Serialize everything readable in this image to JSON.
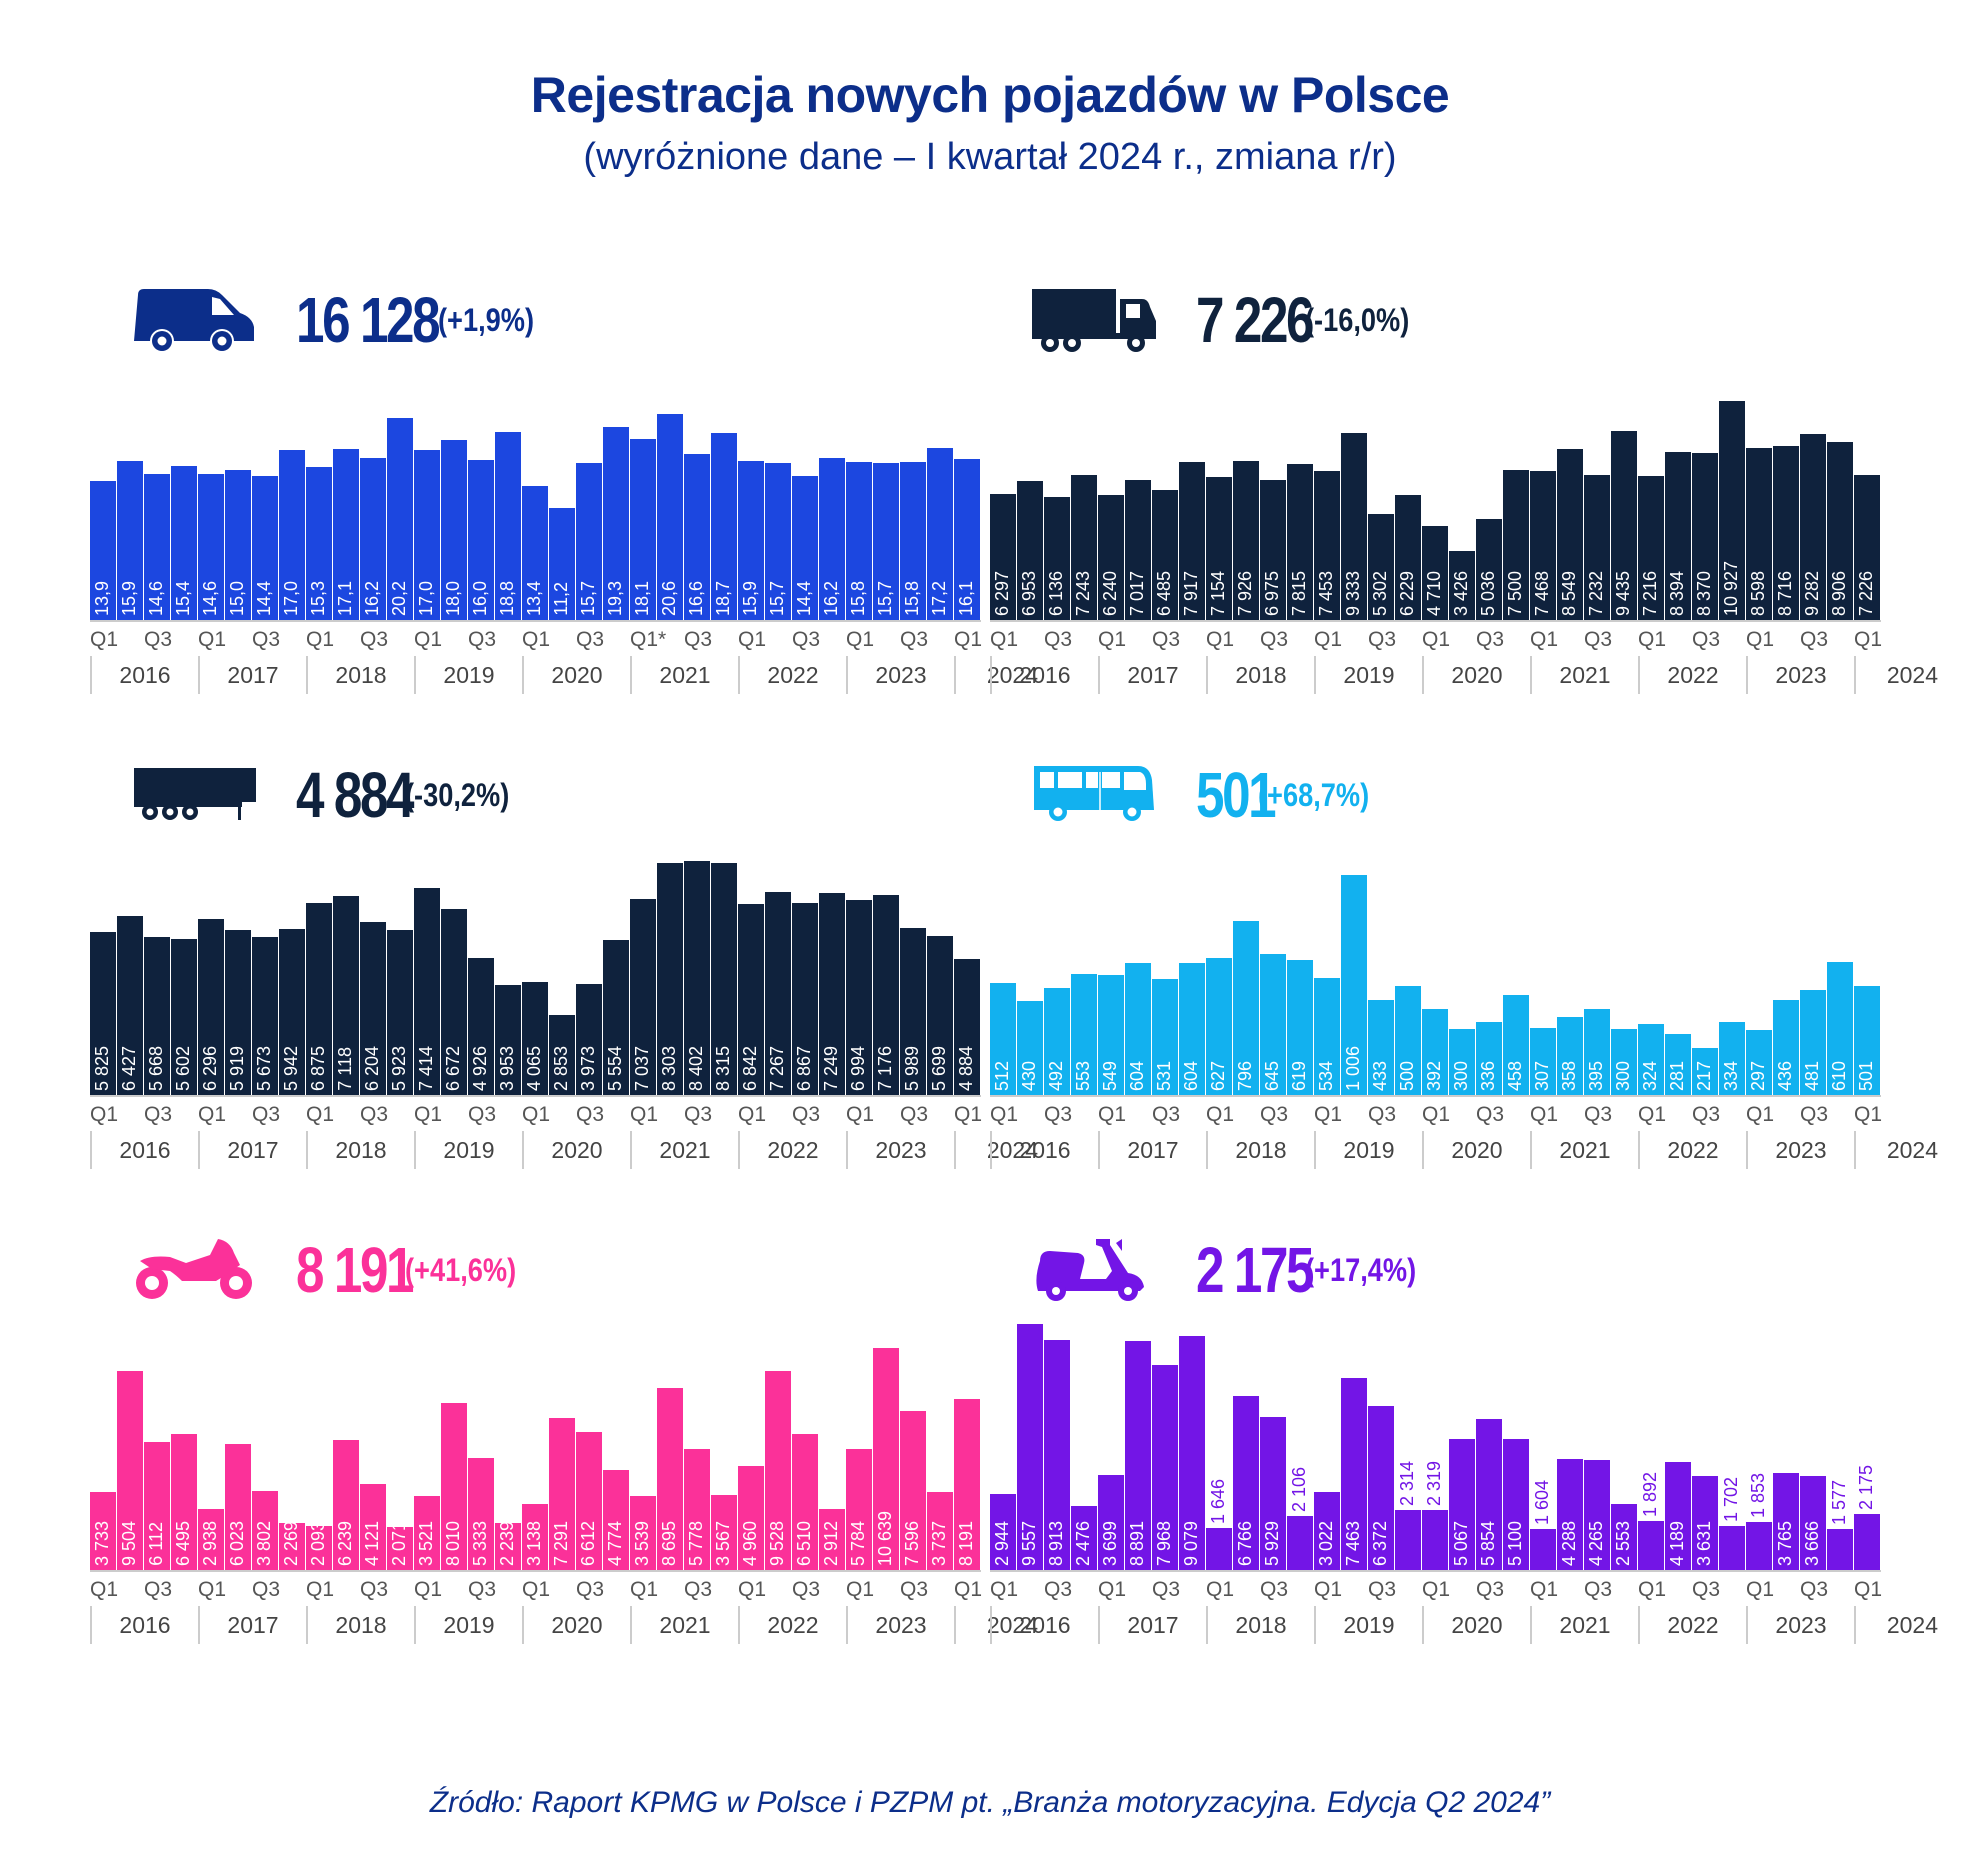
{
  "header": {
    "title": "Rejestracja nowych pojazdów w Polsce",
    "subtitle": "(wyróżnione dane – I kwartał 2024 r., zmiana r/r)"
  },
  "footer": {
    "source": "Źródło: Raport KPMG w Polsce i PZPM pt. „Branża motoryzacyjna. Edycja Q2 2024”"
  },
  "axis": {
    "quarters": [
      "Q1",
      "",
      "Q3",
      "",
      "Q1",
      "",
      "Q3",
      "",
      "Q1",
      "",
      "Q3",
      "",
      "Q1",
      "",
      "Q3",
      "",
      "Q1",
      "",
      "Q3",
      "",
      "Q1*",
      "",
      "Q3",
      "",
      "Q1",
      "",
      "Q3",
      "",
      "Q1",
      "",
      "Q3",
      "",
      "Q1"
    ],
    "quarters_plain": [
      "Q1",
      "",
      "Q3",
      "",
      "Q1",
      "",
      "Q3",
      "",
      "Q1",
      "",
      "Q3",
      "",
      "Q1",
      "",
      "Q3",
      "",
      "Q1",
      "",
      "Q3",
      "",
      "Q1",
      "",
      "Q3",
      "",
      "Q1",
      "",
      "Q3",
      "",
      "Q1",
      "",
      "Q3",
      "",
      "Q1"
    ],
    "years": [
      "2016",
      "2017",
      "2018",
      "2019",
      "2020",
      "2021",
      "2022",
      "2023",
      "2024"
    ]
  },
  "panels": {
    "vans": {
      "icon": "van-icon",
      "value": "16 128",
      "change": "(+1,9%)",
      "color": "#1c47e0",
      "text_color": "#0c2e8a",
      "label_color": "#ffffff",
      "unit": "thousand"
    },
    "trucks": {
      "icon": "truck-icon",
      "value": "7 226",
      "change": "(-16,0%)",
      "color": "#0f223d",
      "text_color": "#0f223d",
      "label_color": "#ffffff"
    },
    "trailers": {
      "icon": "trailer-icon",
      "value": "4 884",
      "change": "(-30,2%)",
      "color": "#0f223d",
      "text_color": "#0f223d",
      "label_color": "#ffffff"
    },
    "buses": {
      "icon": "bus-icon",
      "value": "501",
      "change": "(+68,7%)",
      "color": "#12b1ef",
      "text_color": "#12b1ef",
      "label_color": "#ffffff"
    },
    "motorcycles": {
      "icon": "motorcycle-icon",
      "value": "8 191",
      "change": "(+41,6%)",
      "color": "#fb3199",
      "text_color": "#fb3199",
      "label_color": "#ffffff"
    },
    "mopeds": {
      "icon": "scooter-icon",
      "value": "2 175",
      "change": "(+17,4%)",
      "color": "#7315e6",
      "text_color": "#7315e6",
      "label_color": "#ffffff"
    }
  },
  "chart_data": [
    {
      "type": "bar",
      "title": "Samochody dostawcze (LCV) – tys.",
      "headline_value": "16 128",
      "headline_change": "+1,9%",
      "x": [
        "2016 Q1",
        "2016 Q2",
        "2016 Q3",
        "2016 Q4",
        "2017 Q1",
        "2017 Q2",
        "2017 Q3",
        "2017 Q4",
        "2018 Q1",
        "2018 Q2",
        "2018 Q3",
        "2018 Q4",
        "2019 Q1",
        "2019 Q2",
        "2019 Q3",
        "2019 Q4",
        "2020 Q1",
        "2020 Q2",
        "2020 Q3",
        "2020 Q4",
        "2021 Q1*",
        "2021 Q2",
        "2021 Q3",
        "2021 Q4",
        "2022 Q1",
        "2022 Q2",
        "2022 Q3",
        "2022 Q4",
        "2023 Q1",
        "2023 Q2",
        "2023 Q3",
        "2023 Q4",
        "2024 Q1"
      ],
      "values": [
        13.9,
        15.9,
        14.6,
        15.4,
        14.6,
        15.0,
        14.4,
        17.0,
        15.3,
        17.1,
        16.2,
        20.2,
        17.0,
        18.0,
        16.0,
        18.8,
        13.4,
        11.2,
        15.7,
        19.3,
        18.1,
        20.6,
        16.6,
        18.7,
        15.9,
        15.7,
        14.4,
        16.2,
        15.8,
        15.7,
        15.8,
        17.2,
        16.1
      ],
      "labels": [
        "13,9",
        "15,9",
        "14,6",
        "15,4",
        "14,6",
        "15,0",
        "14,4",
        "17,0",
        "15,3",
        "17,1",
        "16,2",
        "20,2",
        "17,0",
        "18,0",
        "16,0",
        "18,8",
        "13,4",
        "11,2",
        "15,7",
        "19,3",
        "18,1",
        "20,6",
        "16,6",
        "18,7",
        "15,9",
        "15,7",
        "14,4",
        "16,2",
        "15,8",
        "15,7",
        "15,8",
        "17,2",
        "16,1"
      ],
      "ymin": 0,
      "ymax": 23,
      "xlabel": "",
      "ylabel": "",
      "grid": false
    },
    {
      "type": "bar",
      "title": "Samochody ciężarowe",
      "headline_value": "7 226",
      "headline_change": "-16,0%",
      "x": [
        "2016 Q1",
        "2016 Q2",
        "2016 Q3",
        "2016 Q4",
        "2017 Q1",
        "2017 Q2",
        "2017 Q3",
        "2017 Q4",
        "2018 Q1",
        "2018 Q2",
        "2018 Q3",
        "2018 Q4",
        "2019 Q1",
        "2019 Q2",
        "2019 Q3",
        "2019 Q4",
        "2020 Q1",
        "2020 Q2",
        "2020 Q3",
        "2020 Q4",
        "2021 Q1",
        "2021 Q2",
        "2021 Q3",
        "2021 Q4",
        "2022 Q1",
        "2022 Q2",
        "2022 Q3",
        "2022 Q4",
        "2023 Q1",
        "2023 Q2",
        "2023 Q3",
        "2023 Q4",
        "2024 Q1"
      ],
      "values": [
        6297,
        6953,
        6136,
        7243,
        6240,
        7017,
        6485,
        7917,
        7154,
        7926,
        6975,
        7815,
        7453,
        9333,
        5302,
        6229,
        4710,
        3426,
        5036,
        7500,
        7468,
        8549,
        7232,
        9435,
        7216,
        8394,
        8370,
        10927,
        8598,
        8716,
        9282,
        8906,
        7226
      ],
      "labels": [
        "6 297",
        "6 953",
        "6 136",
        "7 243",
        "6 240",
        "7 017",
        "6 485",
        "7 917",
        "7 154",
        "7 926",
        "6 975",
        "7 815",
        "7 453",
        "9 333",
        "5 302",
        "6 229",
        "4 710",
        "3 426",
        "5 036",
        "7 500",
        "7 468",
        "8 549",
        "7 232",
        "9 435",
        "7 216",
        "8 394",
        "8 370",
        "10 927",
        "8 598",
        "8 716",
        "9 282",
        "8 906",
        "7 226"
      ],
      "ymin": 0,
      "ymax": 11500,
      "xlabel": "",
      "ylabel": "",
      "grid": false
    },
    {
      "type": "bar",
      "title": "Naczepy",
      "headline_value": "4 884",
      "headline_change": "-30,2%",
      "x": [
        "2016 Q1",
        "2016 Q2",
        "2016 Q3",
        "2016 Q4",
        "2017 Q1",
        "2017 Q2",
        "2017 Q3",
        "2017 Q4",
        "2018 Q1",
        "2018 Q2",
        "2018 Q3",
        "2018 Q4",
        "2019 Q1",
        "2019 Q2",
        "2019 Q3",
        "2019 Q4",
        "2020 Q1",
        "2020 Q2",
        "2020 Q3",
        "2020 Q4",
        "2021 Q1",
        "2021 Q2",
        "2021 Q3",
        "2021 Q4",
        "2022 Q1",
        "2022 Q2",
        "2022 Q3",
        "2022 Q4",
        "2023 Q1",
        "2023 Q2",
        "2023 Q3",
        "2023 Q4",
        "2024 Q1"
      ],
      "values": [
        5825,
        6427,
        5668,
        5602,
        6296,
        5919,
        5673,
        5942,
        6875,
        7118,
        6204,
        5923,
        7414,
        6672,
        4926,
        3953,
        4065,
        2853,
        3973,
        5554,
        7037,
        8303,
        8402,
        8315,
        6842,
        7267,
        6867,
        7249,
        6994,
        7176,
        5989,
        5699,
        4884
      ],
      "labels": [
        "5 825",
        "6 427",
        "5 668",
        "5 602",
        "6 296",
        "5 919",
        "5 673",
        "5 942",
        "6 875",
        "7 118",
        "6 204",
        "5 923",
        "7 414",
        "6 672",
        "4 926",
        "3 953",
        "4 065",
        "2 853",
        "3 973",
        "5 554",
        "7 037",
        "8 303",
        "8 402",
        "8 315",
        "6 842",
        "7 267",
        "6 867",
        "7 249",
        "6 994",
        "7 176",
        "5 989",
        "5 699",
        "4 884"
      ],
      "ymin": 0,
      "ymax": 8600,
      "xlabel": "",
      "ylabel": "",
      "grid": false
    },
    {
      "type": "bar",
      "title": "Autobusy",
      "headline_value": "501",
      "headline_change": "+68,7%",
      "x": [
        "2016 Q1",
        "2016 Q2",
        "2016 Q3",
        "2016 Q4",
        "2017 Q1",
        "2017 Q2",
        "2017 Q3",
        "2017 Q4",
        "2018 Q1",
        "2018 Q2",
        "2018 Q3",
        "2018 Q4",
        "2019 Q1",
        "2019 Q2",
        "2019 Q3",
        "2019 Q4",
        "2020 Q1",
        "2020 Q2",
        "2020 Q3",
        "2020 Q4",
        "2021 Q1",
        "2021 Q2",
        "2021 Q3",
        "2021 Q4",
        "2022 Q1",
        "2022 Q2",
        "2022 Q3",
        "2022 Q4",
        "2023 Q1",
        "2023 Q2",
        "2023 Q3",
        "2023 Q4",
        "2024 Q1"
      ],
      "values": [
        512,
        430,
        492,
        553,
        549,
        604,
        531,
        604,
        627,
        796,
        645,
        619,
        534,
        1006,
        433,
        500,
        392,
        300,
        336,
        458,
        307,
        358,
        395,
        300,
        324,
        281,
        217,
        334,
        297,
        436,
        481,
        610,
        501
      ],
      "labels": [
        "512",
        "430",
        "492",
        "553",
        "549",
        "604",
        "531",
        "604",
        "627",
        "796",
        "645",
        "619",
        "534",
        "1 006",
        "433",
        "500",
        "392",
        "300",
        "336",
        "458",
        "307",
        "358",
        "395",
        "300",
        "324",
        "281",
        "217",
        "334",
        "297",
        "436",
        "481",
        "610",
        "501"
      ],
      "ymin": 0,
      "ymax": 1030,
      "xlabel": "",
      "ylabel": "",
      "grid": false
    },
    {
      "type": "bar",
      "title": "Motocykle",
      "headline_value": "8 191",
      "headline_change": "+41,6%",
      "x": [
        "2016 Q1",
        "2016 Q2",
        "2016 Q3",
        "2016 Q4",
        "2017 Q1",
        "2017 Q2",
        "2017 Q3",
        "2017 Q4",
        "2018 Q1",
        "2018 Q2",
        "2018 Q3",
        "2018 Q4",
        "2019 Q1",
        "2019 Q2",
        "2019 Q3",
        "2019 Q4",
        "2020 Q1",
        "2020 Q2",
        "2020 Q3",
        "2020 Q4",
        "2021 Q1",
        "2021 Q2",
        "2021 Q3",
        "2021 Q4",
        "2022 Q1",
        "2022 Q2",
        "2022 Q3",
        "2022 Q4",
        "2023 Q1",
        "2023 Q2",
        "2023 Q3",
        "2023 Q4",
        "2024 Q1"
      ],
      "values": [
        3733,
        9504,
        6112,
        6495,
        2938,
        6023,
        3802,
        2269,
        2093,
        6239,
        4121,
        2071,
        3521,
        8010,
        5333,
        2239,
        3138,
        7291,
        6612,
        4774,
        3539,
        8695,
        5778,
        3567,
        4960,
        9528,
        6510,
        2912,
        5784,
        10639,
        7596,
        3737,
        8191
      ],
      "labels": [
        "3 733",
        "9 504",
        "6 112",
        "6 495",
        "2 938",
        "6 023",
        "3 802",
        "2 269",
        "2 093",
        "6 239",
        "4 121",
        "2 071",
        "3 521",
        "8 010",
        "5 333",
        "2 239",
        "3 138",
        "7 291",
        "6 612",
        "4 774",
        "3 539",
        "8 695",
        "5 778",
        "3 567",
        "4 960",
        "9 528",
        "6 510",
        "2 912",
        "5 784",
        "10 639",
        "7 596",
        "3 737",
        "8 191"
      ],
      "ymin": 0,
      "ymax": 11000,
      "xlabel": "",
      "ylabel": "",
      "grid": false
    },
    {
      "type": "bar",
      "title": "Motorowery",
      "headline_value": "2 175",
      "headline_change": "+17,4%",
      "x": [
        "2016 Q1",
        "2016 Q2",
        "2016 Q3",
        "2016 Q4",
        "2017 Q1",
        "2017 Q2",
        "2017 Q3",
        "2017 Q4",
        "2018 Q1",
        "2018 Q2",
        "2018 Q3",
        "2018 Q4",
        "2019 Q1",
        "2019 Q2",
        "2019 Q3",
        "2019 Q4",
        "2020 Q1",
        "2020 Q2",
        "2020 Q3",
        "2020 Q4",
        "2021 Q1",
        "2021 Q2",
        "2021 Q3",
        "2021 Q4",
        "2022 Q1",
        "2022 Q2",
        "2022 Q3",
        "2022 Q4",
        "2023 Q1",
        "2023 Q2",
        "2023 Q3",
        "2023 Q4",
        "2024 Q1"
      ],
      "values": [
        2944,
        9557,
        8913,
        2476,
        3699,
        8891,
        7968,
        9079,
        1646,
        6766,
        5929,
        2106,
        3022,
        7463,
        6372,
        2314,
        2319,
        5067,
        5854,
        5100,
        1604,
        4288,
        4265,
        2553,
        1892,
        4189,
        3631,
        1702,
        1853,
        3765,
        3666,
        1577,
        2175
      ],
      "labels": [
        "2 944",
        "9 557",
        "8 913",
        "2 476",
        "3 699",
        "8 891",
        "7 968",
        "9 079",
        "1 646",
        "6 766",
        "5 929",
        "2 106",
        "3 022",
        "7 463",
        "6 372",
        "2 314",
        "2 319",
        "5 067",
        "5 854",
        "5 100",
        "1 604",
        "4 288",
        "4 265",
        "2 553",
        "1 892",
        "4 189",
        "3 631",
        "1 702",
        "1 853",
        "3 765",
        "3 666",
        "1 577",
        "2 175"
      ],
      "ymin": 0,
      "ymax": 9700,
      "xlabel": "",
      "ylabel": "",
      "grid": false
    }
  ]
}
